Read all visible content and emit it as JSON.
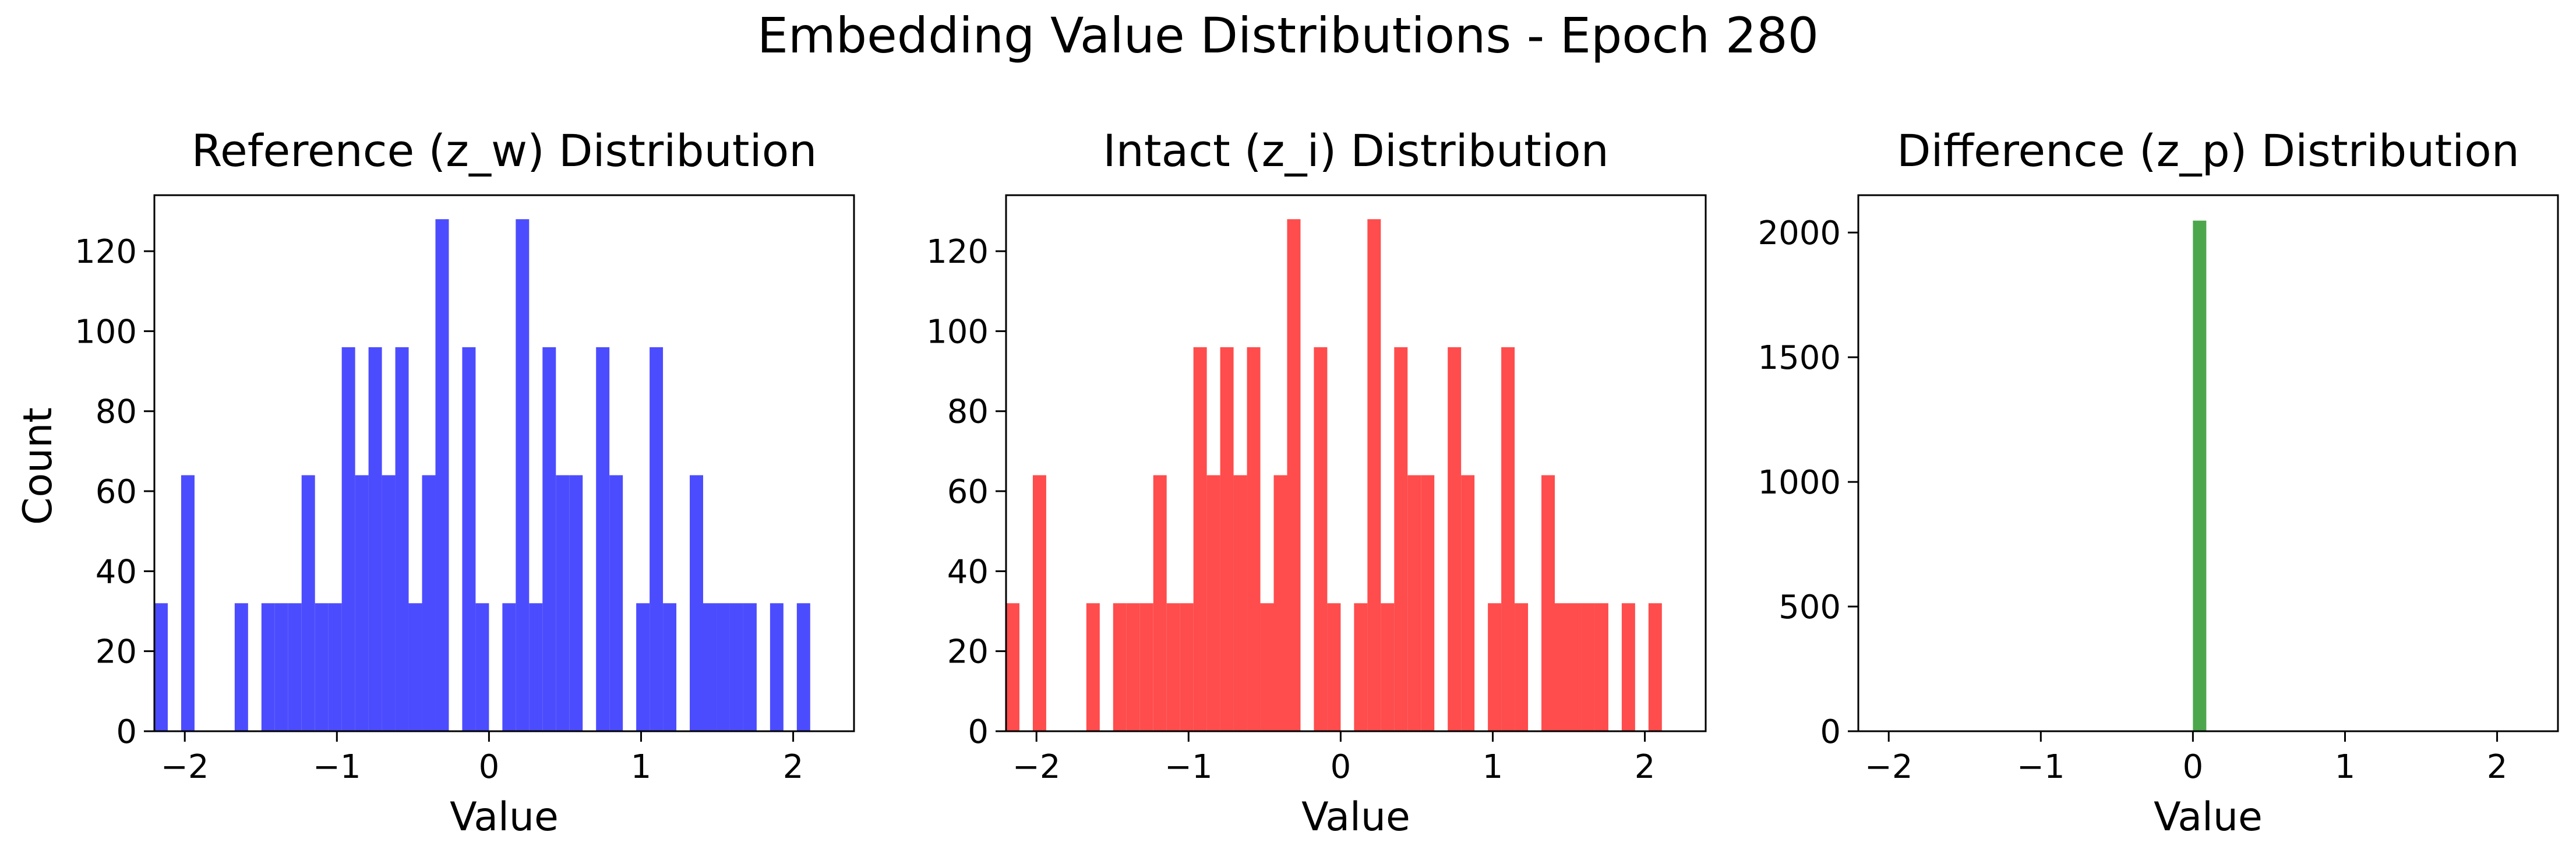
{
  "suptitle": "Embedding Value Distributions - Epoch 280",
  "shared_ylabel": "Count",
  "chart_data": [
    {
      "type": "bar",
      "title": "Reference (z_w) Distribution",
      "xlabel": "Value",
      "ylabel": "Count",
      "color": "#4c4cff",
      "xlim": [
        -2.2,
        2.4
      ],
      "ylim": [
        0,
        134
      ],
      "xticks": [
        -2,
        -1,
        0,
        1,
        2
      ],
      "xtick_labels": [
        "−2",
        "−1",
        "0",
        "1",
        "2"
      ],
      "yticks": [
        0,
        20,
        40,
        60,
        80,
        100,
        120
      ],
      "bin_start": -2.2,
      "bin_width": 0.088,
      "values": [
        32,
        0,
        64,
        0,
        0,
        0,
        32,
        0,
        32,
        32,
        32,
        64,
        32,
        32,
        96,
        64,
        96,
        64,
        96,
        32,
        64,
        128,
        0,
        96,
        32,
        0,
        32,
        128,
        32,
        96,
        64,
        64,
        0,
        96,
        64,
        0,
        32,
        96,
        32,
        0,
        64,
        32,
        32,
        32,
        32,
        0,
        32,
        0,
        32,
        0
      ]
    },
    {
      "type": "bar",
      "title": "Intact (z_i) Distribution",
      "xlabel": "Value",
      "ylabel": "",
      "color": "#ff4c4c",
      "xlim": [
        -2.2,
        2.4
      ],
      "ylim": [
        0,
        134
      ],
      "xticks": [
        -2,
        -1,
        0,
        1,
        2
      ],
      "xtick_labels": [
        "−2",
        "−1",
        "0",
        "1",
        "2"
      ],
      "yticks": [
        0,
        20,
        40,
        60,
        80,
        100,
        120
      ],
      "bin_start": -2.2,
      "bin_width": 0.088,
      "values": [
        32,
        0,
        64,
        0,
        0,
        0,
        32,
        0,
        32,
        32,
        32,
        64,
        32,
        32,
        96,
        64,
        96,
        64,
        96,
        32,
        64,
        128,
        0,
        96,
        32,
        0,
        32,
        128,
        32,
        96,
        64,
        64,
        0,
        96,
        64,
        0,
        32,
        96,
        32,
        0,
        64,
        32,
        32,
        32,
        32,
        0,
        32,
        0,
        32,
        0
      ]
    },
    {
      "type": "bar",
      "title": "Difference (z_p) Distribution",
      "xlabel": "Value",
      "ylabel": "",
      "color": "#4ca64c",
      "xlim": [
        -2.2,
        2.4
      ],
      "ylim": [
        0,
        2150
      ],
      "xticks": [
        -2,
        -1,
        0,
        1,
        2
      ],
      "xtick_labels": [
        "−2",
        "−1",
        "0",
        "1",
        "2"
      ],
      "yticks": [
        0,
        500,
        1000,
        1500,
        2000
      ],
      "bin_start": 0.0,
      "bin_width": 0.088,
      "values": [
        2048
      ]
    }
  ]
}
